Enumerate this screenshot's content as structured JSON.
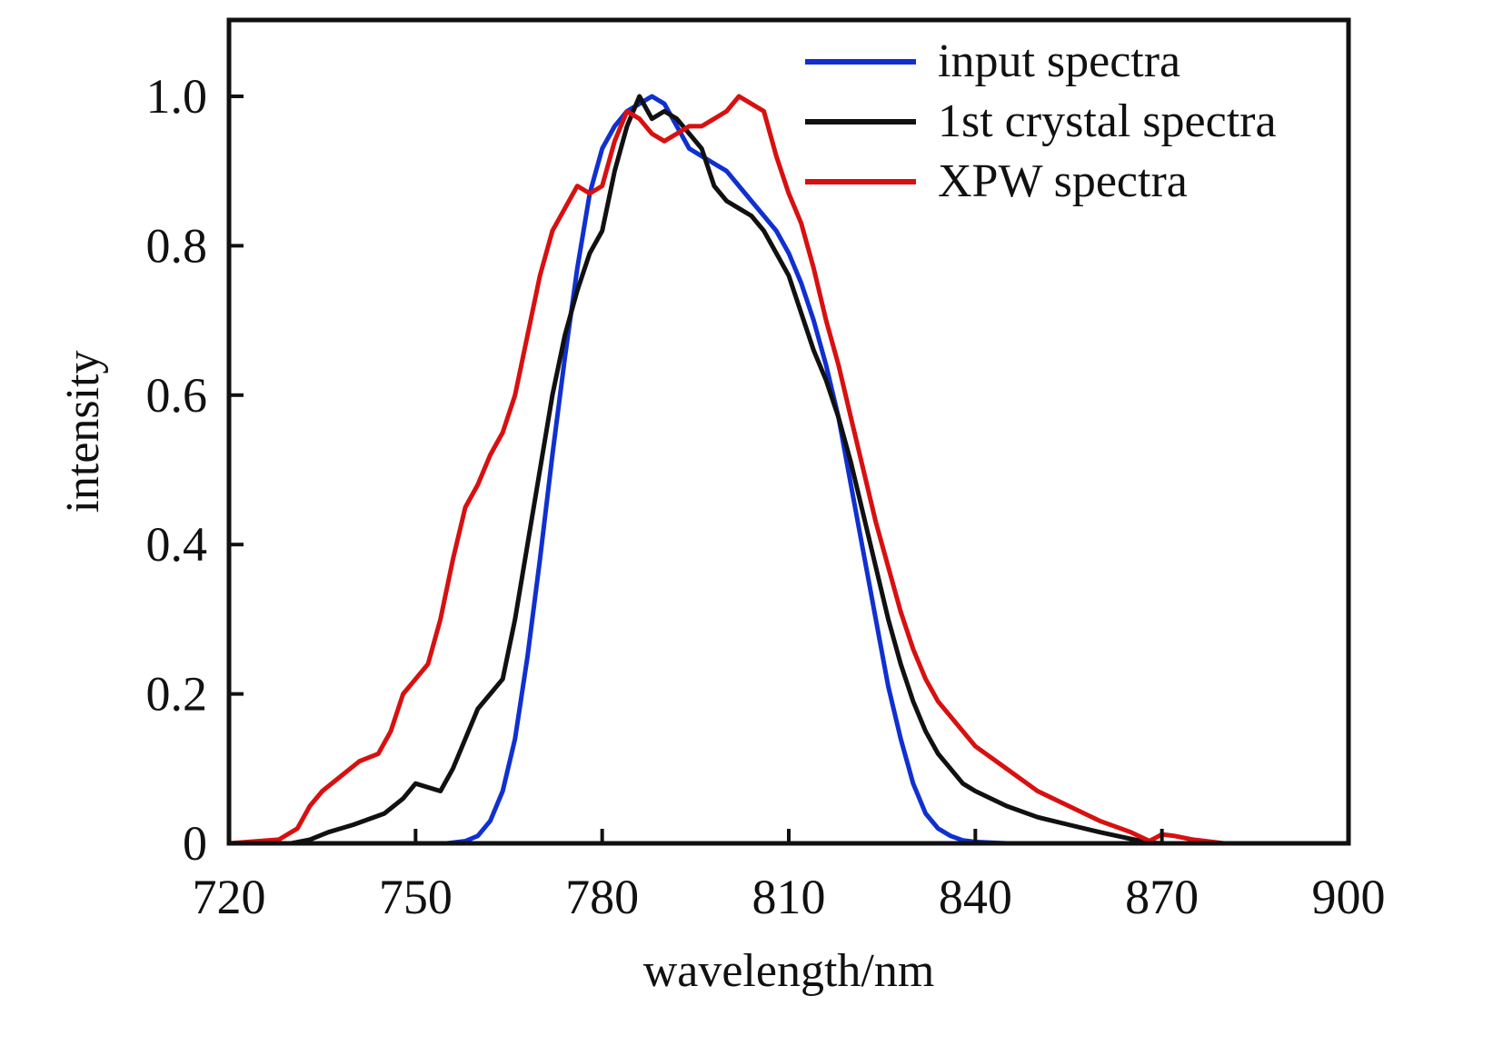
{
  "chart_data": {
    "type": "line",
    "title": "",
    "xlabel": "wavelength/nm",
    "ylabel": "intensity",
    "xlim": [
      720,
      900
    ],
    "ylim": [
      0,
      1.1
    ],
    "xticks": [
      720,
      750,
      780,
      810,
      840,
      870,
      900
    ],
    "xtick_labels": [
      "720",
      "750",
      "780",
      "810",
      "840",
      "870",
      "900"
    ],
    "yticks": [
      0,
      0.2,
      0.4,
      0.6,
      0.8,
      1.0
    ],
    "ytick_labels": [
      "0",
      "0.2",
      "0.4",
      "0.6",
      "0.8",
      "1.0"
    ],
    "grid": false,
    "legend_position": "top-right",
    "series": [
      {
        "name": "input spectra",
        "color": "#1030d0",
        "x": [
          720,
          740,
          755,
          758,
          760,
          762,
          764,
          766,
          768,
          770,
          772,
          774,
          776,
          778,
          780,
          782,
          784,
          786,
          788,
          790,
          792,
          794,
          796,
          798,
          800,
          802,
          804,
          806,
          808,
          810,
          812,
          814,
          816,
          818,
          820,
          822,
          824,
          826,
          828,
          830,
          832,
          834,
          836,
          838,
          840,
          845,
          860,
          880,
          900
        ],
        "y": [
          0.0,
          0.0,
          0.0,
          0.003,
          0.01,
          0.03,
          0.07,
          0.14,
          0.25,
          0.38,
          0.52,
          0.65,
          0.77,
          0.87,
          0.93,
          0.96,
          0.98,
          0.99,
          1.0,
          0.99,
          0.96,
          0.93,
          0.92,
          0.91,
          0.9,
          0.88,
          0.86,
          0.84,
          0.82,
          0.79,
          0.75,
          0.7,
          0.64,
          0.57,
          0.48,
          0.39,
          0.3,
          0.21,
          0.14,
          0.08,
          0.04,
          0.02,
          0.01,
          0.004,
          0.002,
          0.0,
          0.0,
          0.0,
          0.0
        ]
      },
      {
        "name": "1st crystal spectra",
        "color": "#111111",
        "x": [
          720,
          730,
          733,
          736,
          740,
          745,
          748,
          750,
          752,
          754,
          756,
          758,
          760,
          762,
          764,
          766,
          768,
          770,
          772,
          774,
          776,
          778,
          780,
          782,
          784,
          786,
          788,
          790,
          792,
          794,
          796,
          798,
          800,
          802,
          804,
          806,
          808,
          810,
          812,
          814,
          816,
          818,
          820,
          822,
          824,
          826,
          828,
          830,
          832,
          834,
          836,
          838,
          840,
          845,
          850,
          855,
          860,
          865,
          868,
          870,
          880,
          900
        ],
        "y": [
          0.0,
          0.0,
          0.005,
          0.015,
          0.025,
          0.04,
          0.06,
          0.08,
          0.075,
          0.07,
          0.1,
          0.14,
          0.18,
          0.2,
          0.22,
          0.3,
          0.4,
          0.5,
          0.6,
          0.68,
          0.74,
          0.79,
          0.82,
          0.9,
          0.96,
          1.0,
          0.97,
          0.98,
          0.97,
          0.95,
          0.93,
          0.88,
          0.86,
          0.85,
          0.84,
          0.82,
          0.79,
          0.76,
          0.71,
          0.66,
          0.62,
          0.57,
          0.51,
          0.44,
          0.37,
          0.3,
          0.24,
          0.19,
          0.15,
          0.12,
          0.1,
          0.08,
          0.07,
          0.05,
          0.035,
          0.025,
          0.015,
          0.006,
          0.001,
          0.0,
          0.0,
          0.0
        ]
      },
      {
        "name": "XPW spectra",
        "color": "#d81010",
        "x": [
          720,
          728,
          731,
          733,
          735,
          738,
          741,
          744,
          746,
          748,
          750,
          752,
          754,
          756,
          758,
          760,
          762,
          764,
          766,
          768,
          770,
          772,
          774,
          776,
          778,
          780,
          782,
          784,
          786,
          788,
          790,
          792,
          794,
          796,
          798,
          800,
          802,
          804,
          806,
          808,
          810,
          812,
          814,
          816,
          818,
          820,
          822,
          824,
          826,
          828,
          830,
          832,
          834,
          836,
          838,
          840,
          845,
          850,
          855,
          860,
          865,
          868,
          870,
          872,
          875,
          880,
          900
        ],
        "y": [
          0.0,
          0.005,
          0.02,
          0.05,
          0.07,
          0.09,
          0.11,
          0.12,
          0.15,
          0.2,
          0.22,
          0.24,
          0.3,
          0.38,
          0.45,
          0.48,
          0.52,
          0.55,
          0.6,
          0.68,
          0.76,
          0.82,
          0.85,
          0.88,
          0.87,
          0.88,
          0.94,
          0.98,
          0.97,
          0.95,
          0.94,
          0.95,
          0.96,
          0.96,
          0.97,
          0.98,
          1.0,
          0.99,
          0.98,
          0.92,
          0.87,
          0.83,
          0.77,
          0.7,
          0.64,
          0.57,
          0.5,
          0.43,
          0.37,
          0.31,
          0.26,
          0.22,
          0.19,
          0.17,
          0.15,
          0.13,
          0.1,
          0.07,
          0.05,
          0.03,
          0.015,
          0.003,
          0.012,
          0.01,
          0.005,
          0.0,
          0.0
        ]
      }
    ]
  }
}
